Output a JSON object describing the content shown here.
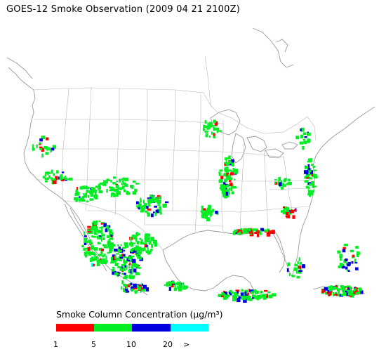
{
  "title": "GOES-12 Smoke Observation (2009 04 21  2100Z)",
  "legend": {
    "title": "Smoke Column Concentration (μg/m³)",
    "bins": [
      {
        "color": "#ff0000"
      },
      {
        "color": "#00ee22"
      },
      {
        "color": "#0000dd"
      },
      {
        "color": "#00ffff"
      }
    ],
    "ticks": [
      "1",
      "5",
      "10",
      "20",
      ">"
    ]
  },
  "colors": {
    "coast": "#9a9a9a",
    "border": "#b8b8b8",
    "low": "#ff0000",
    "mid": "#00ee22",
    "high": "#0000dd",
    "veryhigh": "#00ffff"
  }
}
